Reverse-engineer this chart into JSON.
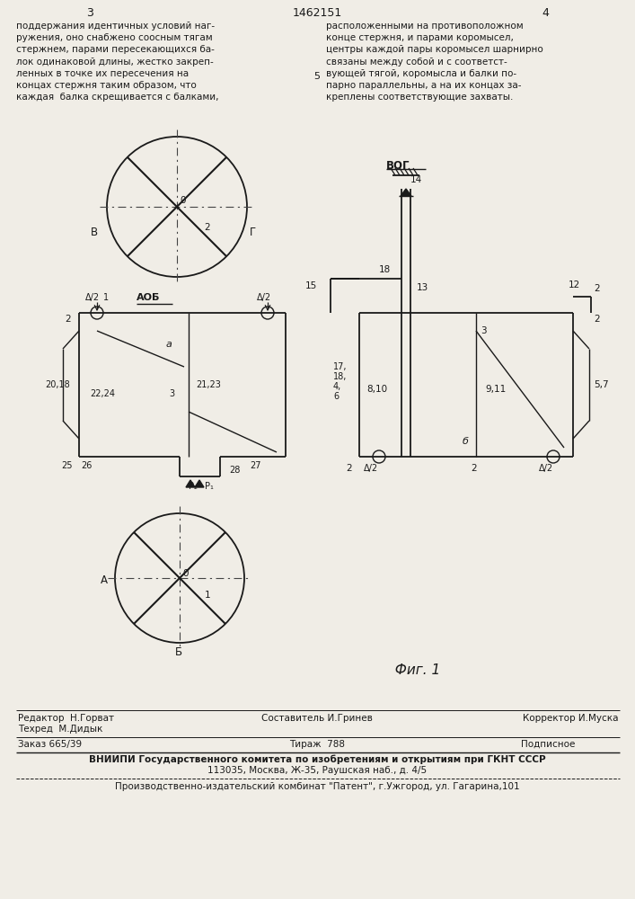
{
  "page_num_left": "3",
  "patent_num": "1462151",
  "page_num_right": "4",
  "text_left": "поддержания идентичных условий наг-\nружения, оно снабжено соосным тягам\nстержнем, парами пересекающихся ба-\nлок одинаковой длины, жестко закреп-\nленных в точке их пересечения на\nконцах стержня таким образом, что\nкаждая  балка скрещивается с балками,",
  "text_right": "расположенными на противоположном\nконце стержня, и парами коромысел,\nцентры каждой пары коромысел шарнирно\nсвязаны между собой и с соответст-\nвующей тягой, коромысла и балки по-\nпарно параллельны, а на их концах за-\nкреплены соответствующие захваты.",
  "footer_line1_left": "Редактор  Н.Горват",
  "footer_line1_center": "Составитель И.Гринев",
  "footer_line1_right": "Корректор И.Муска",
  "footer_line2_left": "Техред  М.Дидык",
  "footer_order": "Заказ 665/39",
  "footer_tirazh": "Тираж  788",
  "footer_podp": "Подписное",
  "footer_vniipи": "ВНИИПИ Государственного комитета по изобретениям и открытиям при ГКНТ СССР",
  "footer_address": "113035, Москва, Ж-35, Раушская наб., д. 4/5",
  "footer_patent": "Производственно-издательский комбинат \"Патент\", г.Ужгород, ул. Гагарина,101",
  "bg_color": "#f0ede6",
  "line_color": "#1a1a1a"
}
